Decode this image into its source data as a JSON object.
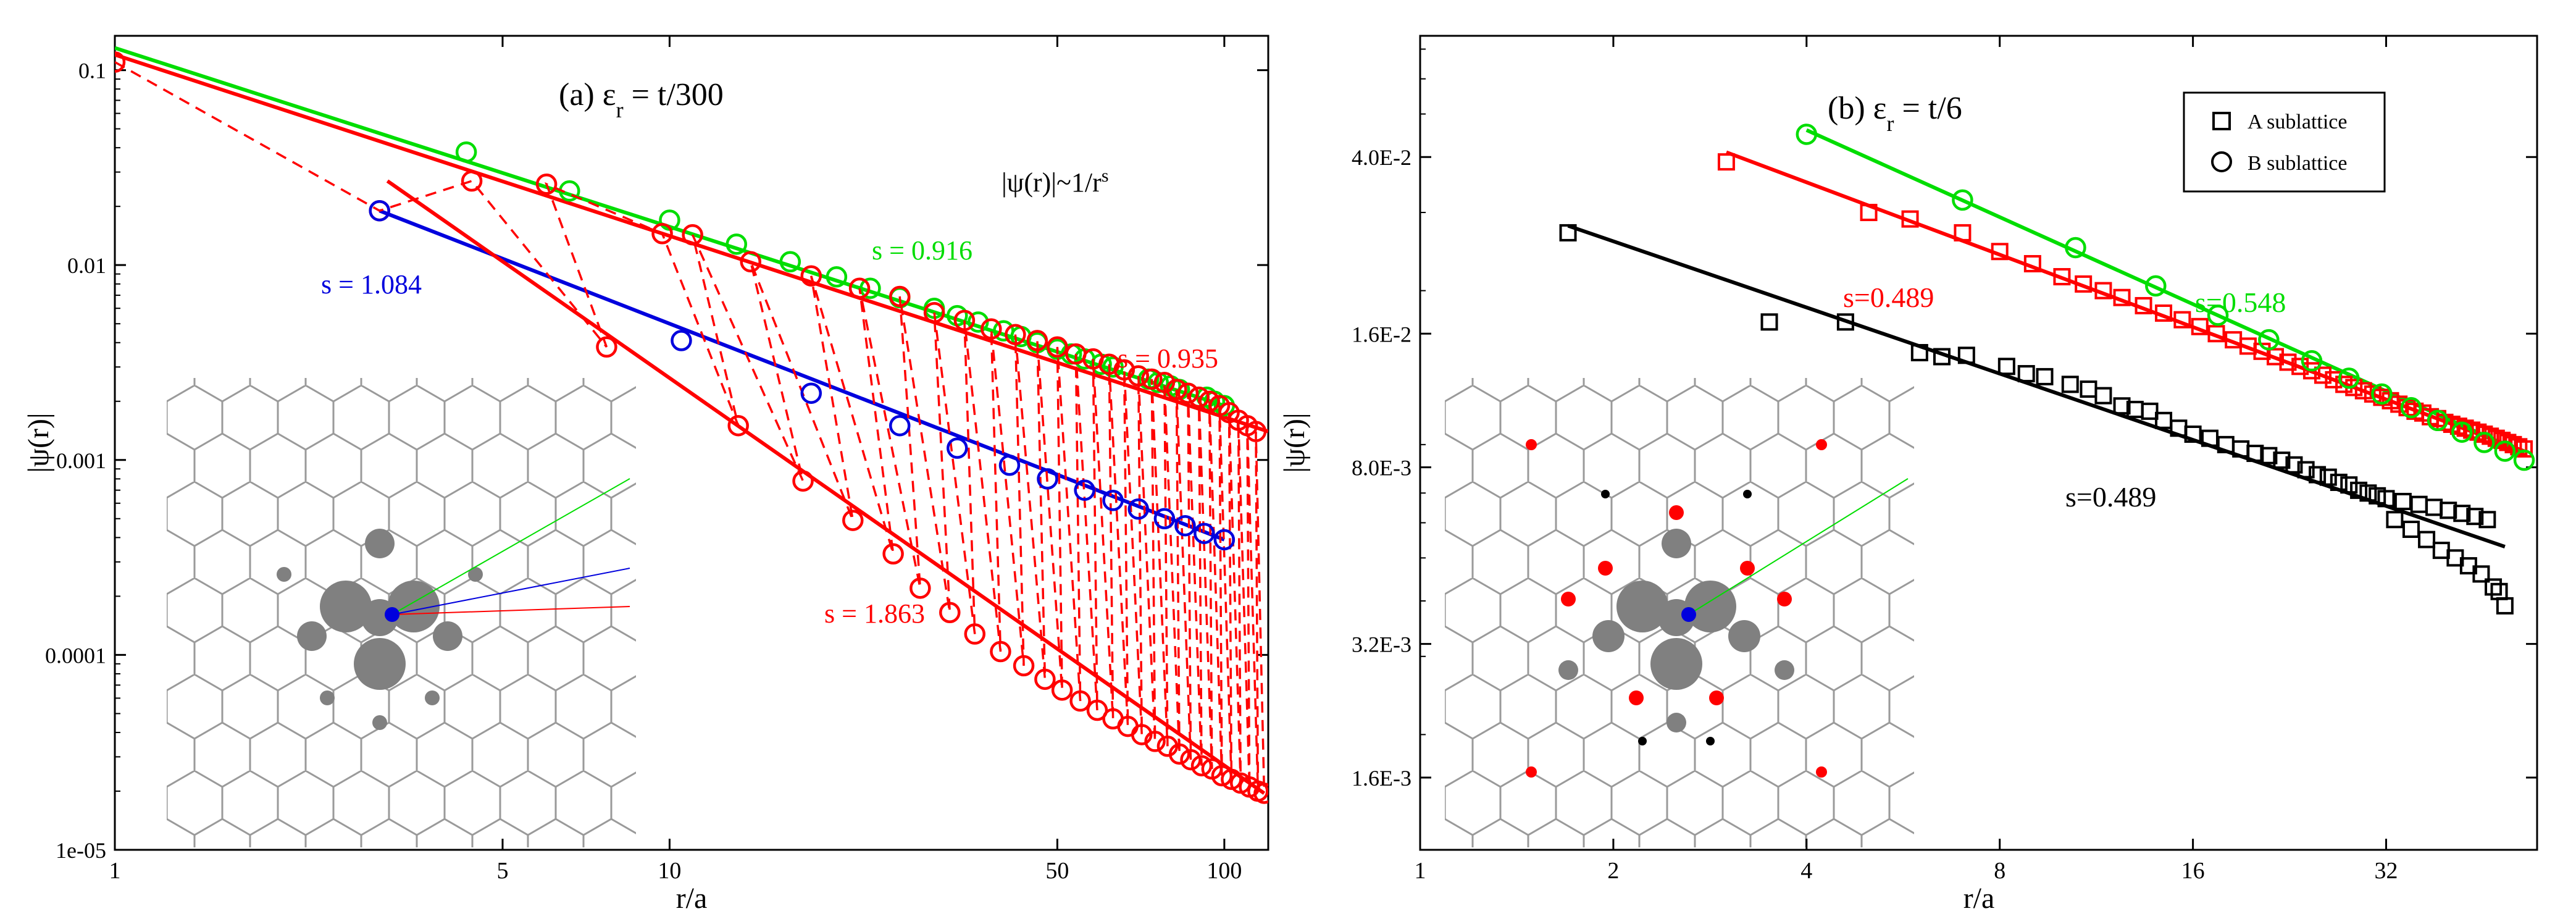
{
  "chart_data": [
    {
      "type": "scatter",
      "panel": "a",
      "title": "(a)  ε_r = t/300",
      "title_main": "(a)  ε",
      "title_sub": "r",
      "title_rest": " = t/300",
      "formula_main": "|ψ(r)|~1/r",
      "formula_sup": "s",
      "xlabel": "r/a",
      "ylabel": "|ψ(r)|",
      "xscale": "log",
      "yscale": "log",
      "xlim": [
        1,
        120
      ],
      "ylim": [
        1e-05,
        0.15
      ],
      "xticks": [
        {
          "value": 1,
          "label": "1"
        },
        {
          "value": 5,
          "label": "5"
        },
        {
          "value": 10,
          "label": "10"
        },
        {
          "value": 50,
          "label": "50"
        },
        {
          "value": 100,
          "label": "100"
        }
      ],
      "yticks": [
        {
          "value": 0.1,
          "label": "0.1"
        },
        {
          "value": 0.01,
          "label": "0.01"
        },
        {
          "value": 0.001,
          "label": "0.001"
        },
        {
          "value": 0.0001,
          "label": "0.0001"
        },
        {
          "value": 1e-05,
          "label": "1e-05"
        }
      ],
      "grid": false,
      "colors": {
        "green": "#00dd00",
        "red": "#ff0000",
        "blue": "#0000dd",
        "black": "#000000"
      },
      "series": [
        {
          "color": "#00dd00",
          "marker": "circle",
          "x": [
            4.3,
            6.6,
            10,
            13.2,
            16.5,
            20,
            23,
            26,
            30,
            33,
            36,
            40,
            43,
            46,
            50,
            53,
            56,
            60,
            63,
            66,
            70,
            73,
            76,
            80,
            83,
            86,
            90,
            93,
            96,
            100
          ],
          "y": [
            0.038,
            0.024,
            0.017,
            0.0128,
            0.0104,
            0.0087,
            0.0076,
            0.0068,
            0.006,
            0.0055,
            0.0051,
            0.0046,
            0.0043,
            0.004,
            0.0037,
            0.0035,
            0.0033,
            0.0031,
            0.003,
            0.0029,
            0.0027,
            0.0026,
            0.0025,
            0.0024,
            0.0023,
            0.0022,
            0.0021,
            0.0021,
            0.002,
            0.0019
          ]
        },
        {
          "color": "#ff0000",
          "marker": "circle",
          "dashed": true,
          "x": [
            1,
            3,
            4.4,
            7.7,
            6,
            9.7,
            13.3,
            11,
            17.4,
            14,
            21.4,
            18,
            25.3,
            22,
            28.3,
            26,
            32,
            30,
            35.5,
            34,
            39.5,
            38,
            43.5,
            42,
            47.5,
            46,
            51,
            50,
            55,
            54,
            59,
            58,
            63,
            62,
            67,
            66,
            71,
            70,
            75,
            74,
            79,
            78,
            83,
            82,
            87,
            86,
            91,
            90,
            95,
            94,
            99,
            98,
            103,
            102,
            107,
            106,
            111,
            110,
            115,
            114,
            118
          ],
          "y": [
            0.11,
            0.019,
            0.027,
            0.0038,
            0.026,
            0.0145,
            0.0015,
            0.0143,
            0.00078,
            0.0104,
            0.00049,
            0.0088,
            0.00033,
            0.0076,
            0.00022,
            0.0069,
            0.000165,
            0.0057,
            0.000128,
            0.0052,
            0.000104,
            0.0047,
            8.8e-05,
            0.0044,
            7.5e-05,
            0.0041,
            6.6e-05,
            0.0038,
            5.8e-05,
            0.0035,
            5.2e-05,
            0.0033,
            4.7e-05,
            0.0031,
            4.3e-05,
            0.0029,
            3.9e-05,
            0.0027,
            3.6e-05,
            0.0026,
            3.4e-05,
            0.0025,
            3.1e-05,
            0.0023,
            2.9e-05,
            0.0022,
            2.7e-05,
            0.0021,
            2.6e-05,
            0.002,
            2.4e-05,
            0.0019,
            2.3e-05,
            0.00175,
            2.2e-05,
            0.0016,
            2.1e-05,
            0.0015,
            2e-05,
            0.0014,
            1.95e-05
          ]
        },
        {
          "color": "#0000dd",
          "marker": "circle",
          "x": [
            3,
            10.5,
            18,
            26,
            33,
            41,
            48,
            56,
            63,
            70,
            78,
            85,
            92,
            100
          ],
          "y": [
            0.019,
            0.0041,
            0.0022,
            0.0015,
            0.00115,
            0.00094,
            0.0008,
            0.0007,
            0.00062,
            0.00056,
            0.0005,
            0.00046,
            0.00042,
            0.00039
          ]
        }
      ],
      "fits": [
        {
          "label": "s = 0.916",
          "color": "#00dd00",
          "x": [
            1,
            100
          ],
          "y": [
            0.13,
            0.0019
          ]
        },
        {
          "label": "s = 0.935",
          "color": "#ff0000",
          "x": [
            1,
            120
          ],
          "y": [
            0.12,
            0.0014
          ]
        },
        {
          "label": "s = 1.084",
          "color": "#0000dd",
          "x": [
            3,
            100
          ],
          "y": [
            0.019,
            0.00039
          ]
        },
        {
          "label": "s = 1.863",
          "color": "#ff0000",
          "x": [
            3.1,
            118
          ],
          "y": [
            0.027,
            1.95e-05
          ]
        }
      ]
    },
    {
      "type": "scatter",
      "panel": "b",
      "title": "(b) ε_r = t/6",
      "title_main": "(b) ε",
      "title_sub": "r",
      "title_rest": " = t/6",
      "xlabel": "r/a",
      "ylabel": "|ψ(r)|",
      "xscale": "log",
      "yscale": "log",
      "xlim": [
        1,
        55
      ],
      "ylim": [
        0.0011,
        0.075
      ],
      "xticks": [
        {
          "value": 1,
          "label": "1"
        },
        {
          "value": 2,
          "label": "2"
        },
        {
          "value": 4,
          "label": "4"
        },
        {
          "value": 8,
          "label": "8"
        },
        {
          "value": 16,
          "label": "16"
        },
        {
          "value": 32,
          "label": "32"
        }
      ],
      "yticks": [
        {
          "value": 0.04,
          "label": "4.0E-2"
        },
        {
          "value": 0.016,
          "label": "1.6E-2"
        },
        {
          "value": 0.008,
          "label": "8.0E-3"
        },
        {
          "value": 0.0032,
          "label": "3.2E-3"
        },
        {
          "value": 0.0016,
          "label": "1.6E-3"
        }
      ],
      "grid": false,
      "legend": {
        "placement": "top-right",
        "entries": [
          {
            "label": "A sublattice",
            "marker": "square"
          },
          {
            "label": "B sublattice",
            "marker": "circle"
          }
        ]
      },
      "series": [
        {
          "color": "#000000",
          "marker": "square",
          "x": [
            1.7,
            3.5,
            4.6,
            6,
            6.5,
            7.1,
            8.2,
            8.8,
            9.4,
            10.3,
            11,
            11.6,
            12.4,
            13,
            13.7,
            14.4,
            15.2,
            16,
            17,
            18,
            19,
            20,
            21,
            22,
            23,
            24,
            25,
            26,
            27,
            28,
            29,
            30,
            31,
            32,
            33,
            34,
            35,
            36,
            37,
            38,
            39,
            40,
            41,
            42,
            43,
            44,
            45,
            46,
            47,
            48,
            49
          ],
          "y": [
            0.027,
            0.017,
            0.017,
            0.0145,
            0.0142,
            0.0143,
            0.0135,
            0.013,
            0.0128,
            0.0123,
            0.012,
            0.0116,
            0.011,
            0.0108,
            0.0107,
            0.0102,
            0.0098,
            0.0095,
            0.0093,
            0.009,
            0.0088,
            0.0086,
            0.0085,
            0.0083,
            0.0081,
            0.0079,
            0.0077,
            0.0076,
            0.0074,
            0.0073,
            0.0071,
            0.007,
            0.0069,
            0.0068,
            0.0061,
            0.0067,
            0.0058,
            0.0066,
            0.0055,
            0.0065,
            0.0052,
            0.0064,
            0.005,
            0.0063,
            0.0048,
            0.0062,
            0.0046,
            0.0061,
            0.0043,
            0.0042,
            0.0039
          ]
        },
        {
          "color": "#ff0000",
          "marker": "square",
          "x": [
            3,
            5,
            5.8,
            7,
            8,
            9,
            10,
            10.8,
            11.6,
            12.4,
            13.4,
            14.4,
            15.4,
            16.4,
            17.4,
            18.5,
            19.5,
            20.5,
            21.5,
            22.5,
            23.5,
            24.5,
            25.5,
            26.5,
            27.5,
            28.5,
            29.5,
            30.5,
            31.5,
            32.5,
            33.5,
            34.5,
            35.5,
            36.5,
            37.5,
            38.5,
            39.5,
            40.5,
            41.5,
            42.5,
            43.5,
            44.5,
            45.5,
            46.5,
            47.5,
            48.5,
            49.5,
            50.5,
            51.5,
            52.5
          ],
          "y": [
            0.039,
            0.03,
            0.029,
            0.027,
            0.0245,
            0.023,
            0.0215,
            0.0207,
            0.02,
            0.0193,
            0.0185,
            0.0178,
            0.0172,
            0.0166,
            0.016,
            0.0155,
            0.015,
            0.0146,
            0.0142,
            0.0138,
            0.0135,
            0.0132,
            0.0129,
            0.0126,
            0.0123,
            0.0121,
            0.0119,
            0.0117,
            0.0115,
            0.0113,
            0.0111,
            0.0109,
            0.0107,
            0.0106,
            0.0104,
            0.0103,
            0.0101,
            0.01,
            0.0099,
            0.0098,
            0.0097,
            0.0096,
            0.0095,
            0.0094,
            0.0093,
            0.0092,
            0.0091,
            0.009,
            0.0089,
            0.0088
          ]
        },
        {
          "color": "#00dd00",
          "marker": "circle",
          "x": [
            4,
            7,
            10.5,
            14,
            17.5,
            21,
            24.5,
            28,
            31.5,
            35,
            38.5,
            42,
            45.5,
            49,
            52.5
          ],
          "y": [
            0.045,
            0.032,
            0.025,
            0.0205,
            0.0176,
            0.0155,
            0.0139,
            0.0127,
            0.0117,
            0.0109,
            0.0102,
            0.0096,
            0.0091,
            0.0087,
            0.0083
          ]
        }
      ],
      "fits": [
        {
          "label": "s=0.489",
          "color": "#ff0000",
          "x": [
            3,
            52.5
          ],
          "y": [
            0.041,
            0.0087
          ]
        },
        {
          "label": "s=0.548",
          "color": "#00dd00",
          "x": [
            4,
            52.5
          ],
          "y": [
            0.046,
            0.0086
          ]
        },
        {
          "label": "s=0.489",
          "color": "#000000",
          "x": [
            1.7,
            49
          ],
          "y": [
            0.028,
            0.0053
          ]
        }
      ]
    }
  ]
}
